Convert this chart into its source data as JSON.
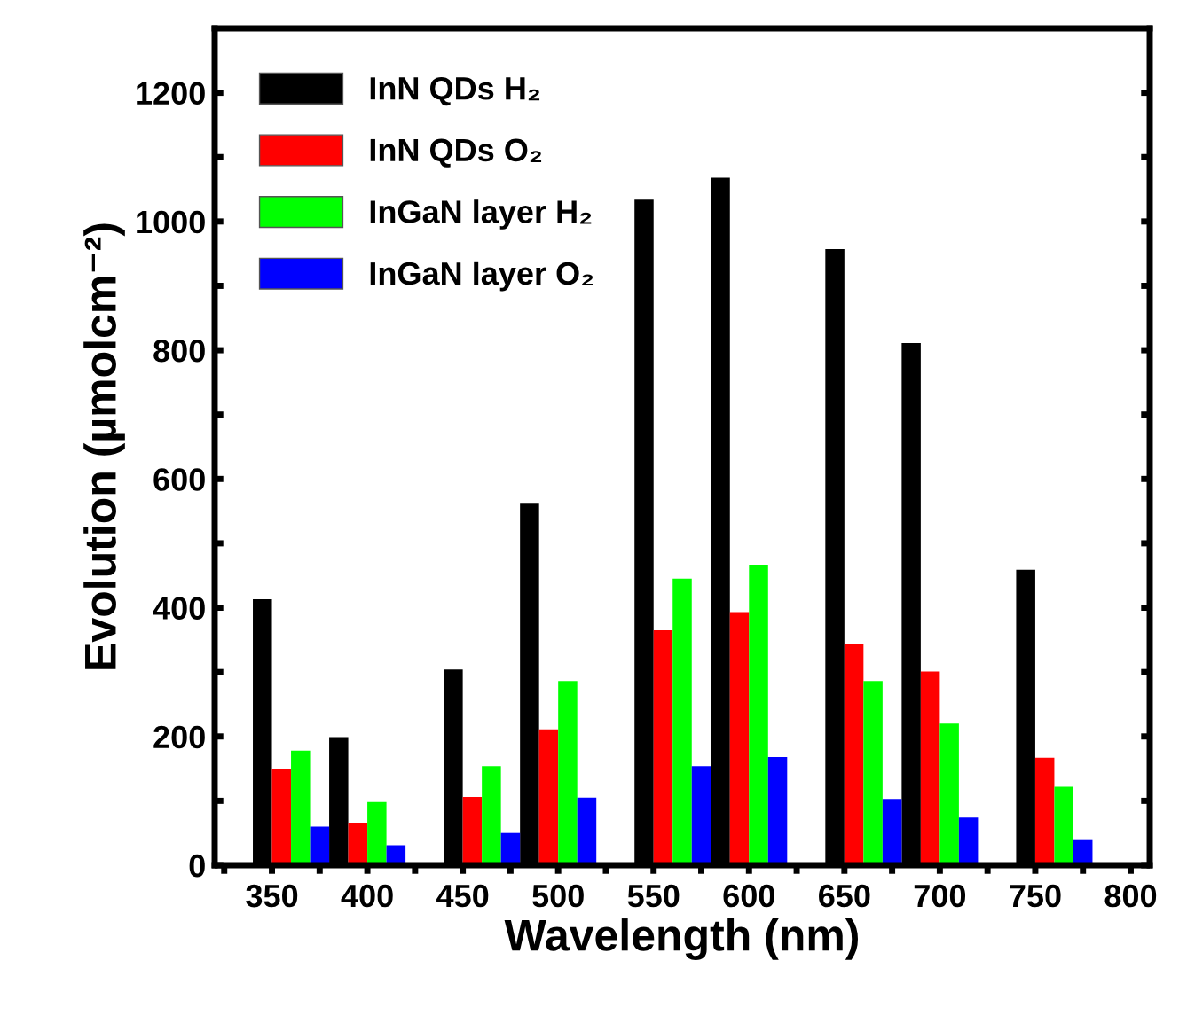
{
  "chart_data": {
    "type": "bar",
    "xlabel": "Wavelength (nm)",
    "ylabel": "Evolution (µmolcm⁻²)",
    "xlim": [
      320,
      810
    ],
    "xticks": [
      {
        "value": 325,
        "label": null
      },
      350,
      {
        "value": 375,
        "label": null
      },
      400,
      {
        "value": 425,
        "label": null
      },
      450,
      {
        "value": 475,
        "label": null
      },
      500,
      {
        "value": 525,
        "label": null
      },
      550,
      {
        "value": 575,
        "label": null
      },
      600,
      {
        "value": 625,
        "label": null
      },
      650,
      {
        "value": 675,
        "label": null
      },
      700,
      {
        "value": 725,
        "label": null
      },
      750,
      {
        "value": 775,
        "label": null
      },
      800
    ],
    "ylim": [
      0,
      1300
    ],
    "yticks": [
      0,
      {
        "value": 100,
        "label": null
      },
      200,
      {
        "value": 300,
        "label": null
      },
      400,
      {
        "value": 500,
        "label": null
      },
      600,
      {
        "value": 700,
        "label": null
      },
      800,
      {
        "value": 900,
        "label": null
      },
      1000,
      {
        "value": 1100,
        "label": null
      },
      1200
    ],
    "grid": false,
    "legend": "top left",
    "series": [
      {
        "name": "InN QDs H₂",
        "color": "#000000",
        "x": [
          345,
          385,
          445,
          485,
          545,
          585,
          645,
          685,
          745
        ],
        "values": [
          413,
          199,
          304,
          563,
          1034,
          1068,
          957,
          811,
          459
        ]
      },
      {
        "name": "InN QDs O₂",
        "color": "#ff0000",
        "x": [
          355,
          395,
          455,
          495,
          555,
          595,
          655,
          695,
          755
        ],
        "values": [
          150,
          66,
          106,
          211,
          365,
          393,
          343,
          301,
          167
        ]
      },
      {
        "name": "InGaN layer H₂",
        "color": "#00ff00",
        "x": [
          365,
          405,
          465,
          505,
          565,
          605,
          665,
          705,
          765
        ],
        "values": [
          178,
          98,
          154,
          286,
          445,
          467,
          286,
          220,
          122
        ]
      },
      {
        "name": "InGaN layer O₂",
        "color": "#0000ff",
        "x": [
          375,
          415,
          475,
          515,
          575,
          615,
          675,
          715,
          775
        ],
        "values": [
          60,
          31,
          50,
          105,
          154,
          168,
          103,
          74,
          39
        ]
      }
    ]
  }
}
